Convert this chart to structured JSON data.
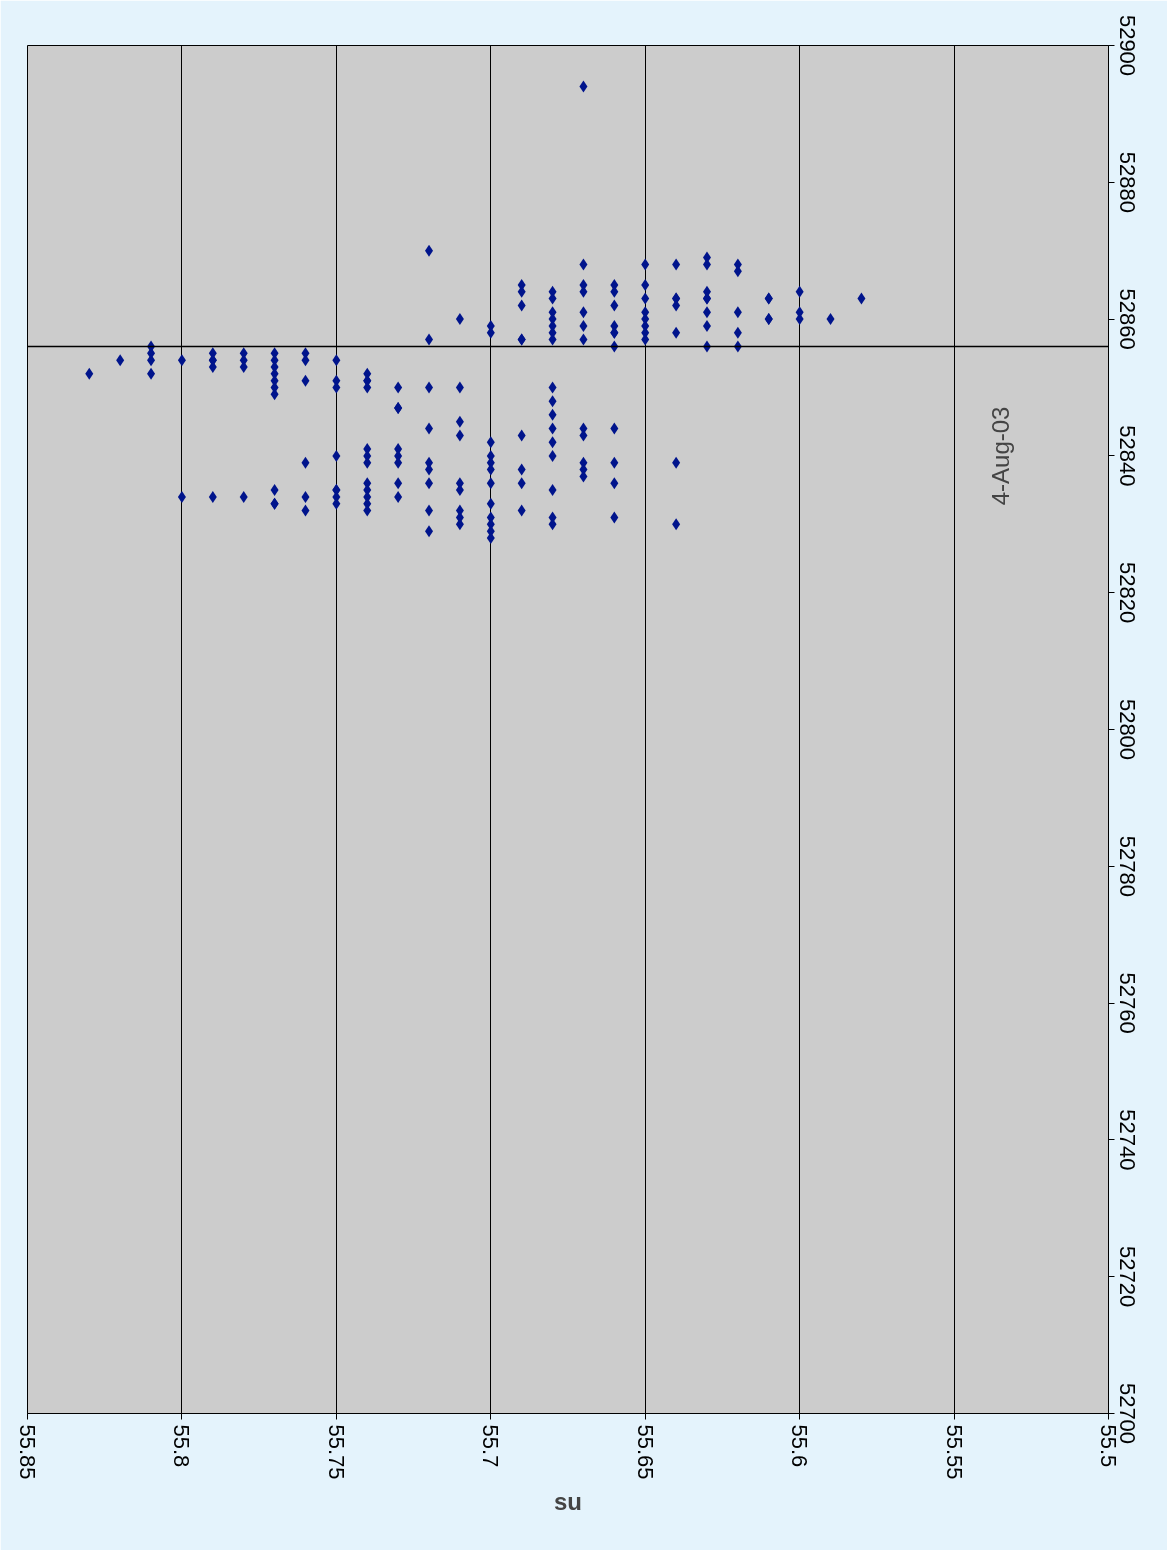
{
  "chart_data": {
    "type": "scatter",
    "xlabel": "su",
    "annotations": [
      "4-Aug-03"
    ],
    "x": [
      55.83,
      55.82,
      55.81,
      55.81,
      55.81,
      55.81,
      55.8,
      55.8,
      55.79,
      55.79,
      55.79,
      55.79,
      55.79,
      55.78,
      55.78,
      55.78,
      55.78,
      55.77,
      55.77,
      55.77,
      55.77,
      55.77,
      55.77,
      55.77,
      55.77,
      55.77,
      55.77,
      55.76,
      55.76,
      55.76,
      55.76,
      55.76,
      55.76,
      55.75,
      55.75,
      55.75,
      55.75,
      55.75,
      55.75,
      55.75,
      55.75,
      55.74,
      55.74,
      55.74,
      55.74,
      55.74,
      55.74,
      55.74,
      55.74,
      55.74,
      55.74,
      55.74,
      55.74,
      55.73,
      55.73,
      55.73,
      55.73,
      55.73,
      55.73,
      55.73,
      55.73,
      55.72,
      55.72,
      55.72,
      55.72,
      55.72,
      55.72,
      55.72,
      55.72,
      55.72,
      55.71,
      55.71,
      55.71,
      55.71,
      55.71,
      55.71,
      55.71,
      55.71,
      55.71,
      55.7,
      55.7,
      55.7,
      55.7,
      55.7,
      55.7,
      55.7,
      55.7,
      55.7,
      55.7,
      55.7,
      55.7,
      55.69,
      55.69,
      55.69,
      55.69,
      55.69,
      55.69,
      55.69,
      55.69,
      55.69,
      55.68,
      55.68,
      55.68,
      55.68,
      55.68,
      55.68,
      55.68,
      55.68,
      55.68,
      55.68,
      55.68,
      55.68,
      55.68,
      55.68,
      55.68,
      55.68,
      55.67,
      55.67,
      55.67,
      55.67,
      55.67,
      55.67,
      55.67,
      55.67,
      55.67,
      55.67,
      55.67,
      55.67,
      55.66,
      55.66,
      55.66,
      55.66,
      55.66,
      55.66,
      55.66,
      55.66,
      55.66,
      55.66,
      55.66,
      55.65,
      55.65,
      55.65,
      55.65,
      55.65,
      55.65,
      55.65,
      55.65,
      55.64,
      55.64,
      55.64,
      55.64,
      55.64,
      55.64,
      55.64,
      55.63,
      55.63,
      55.63,
      55.63,
      55.63,
      55.63,
      55.63,
      55.63,
      55.62,
      55.62,
      55.62,
      55.62,
      55.62,
      55.61,
      55.61,
      55.61,
      55.61,
      55.6,
      55.6,
      55.6,
      55.59,
      55.58
    ],
    "series": [
      {
        "color": "#00148c",
        "values": [
          52852,
          52854,
          52856,
          52855,
          52854,
          52852,
          52854,
          52834,
          52855,
          52854,
          52854,
          52853,
          52834,
          52855,
          52854,
          52853,
          52834,
          52855,
          52854,
          52853,
          52852,
          52851,
          52850,
          52849,
          52835,
          52833,
          52833,
          52855,
          52854,
          52851,
          52839,
          52834,
          52832,
          52854,
          52851,
          52850,
          52840,
          52835,
          52835,
          52834,
          52833,
          52852,
          52851,
          52851,
          52850,
          52841,
          52840,
          52839,
          52836,
          52835,
          52834,
          52833,
          52832,
          52850,
          52847,
          52847,
          52841,
          52840,
          52839,
          52836,
          52834,
          52870,
          52857,
          52850,
          52844,
          52839,
          52838,
          52836,
          52832,
          52829,
          52860,
          52850,
          52845,
          52843,
          52836,
          52835,
          52832,
          52831,
          52830,
          52859,
          52858,
          52842,
          52840,
          52839,
          52838,
          52836,
          52833,
          52831,
          52830,
          52829,
          52828,
          52865,
          52864,
          52862,
          52857,
          52857,
          52843,
          52838,
          52836,
          52832,
          52864,
          52863,
          52861,
          52860,
          52859,
          52858,
          52857,
          52850,
          52848,
          52846,
          52844,
          52842,
          52840,
          52835,
          52831,
          52830,
          52894,
          52868,
          52865,
          52864,
          52861,
          52859,
          52857,
          52844,
          52843,
          52839,
          52838,
          52837,
          52865,
          52864,
          52862,
          52859,
          52858,
          52858,
          52856,
          52844,
          52839,
          52836,
          52831,
          52868,
          52865,
          52863,
          52861,
          52860,
          52859,
          52858,
          52857,
          52868,
          52863,
          52863,
          52862,
          52858,
          52839,
          52830,
          52869,
          52868,
          52864,
          52863,
          52863,
          52861,
          52859,
          52856,
          52868,
          52867,
          52861,
          52858,
          52856,
          52863,
          52863,
          52860,
          52860,
          52864,
          52861,
          52860,
          52860,
          52863
        ]
      }
    ],
    "xlim": [
      55.85,
      55.5
    ],
    "xticks": [
      55.85,
      55.8,
      55.75,
      55.7,
      55.65,
      55.6,
      55.55,
      55.5
    ],
    "ylim": [
      52700,
      52900
    ],
    "yticks": [
      52700,
      52720,
      52740,
      52760,
      52780,
      52800,
      52820,
      52840,
      52860,
      52880,
      52900
    ],
    "grid": "x",
    "marker": "diamond",
    "ref_lines": [
      {
        "axis": "y",
        "value": 52856
      }
    ]
  }
}
